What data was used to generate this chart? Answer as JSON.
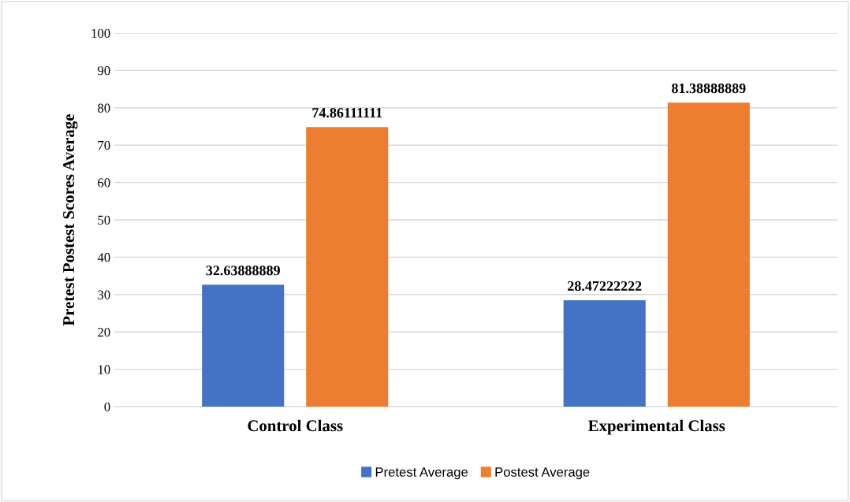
{
  "chart_data": {
    "type": "bar",
    "ylabel": "Pretest Postest Scores Average",
    "categories": [
      "Control Class",
      "Experimental Class"
    ],
    "series": [
      {
        "name": "Pretest Average",
        "color": "#4472c4",
        "values": [
          32.63888889,
          28.47222222
        ]
      },
      {
        "name": "Postest Average",
        "color": "#ed7d31",
        "values": [
          74.86111111,
          81.38888889
        ]
      }
    ],
    "ylim": [
      0,
      100
    ],
    "yticks": [
      0,
      10,
      20,
      30,
      40,
      50,
      60,
      70,
      80,
      90,
      100
    ],
    "grid": "y",
    "legend": "bottom",
    "data_labels": true
  }
}
